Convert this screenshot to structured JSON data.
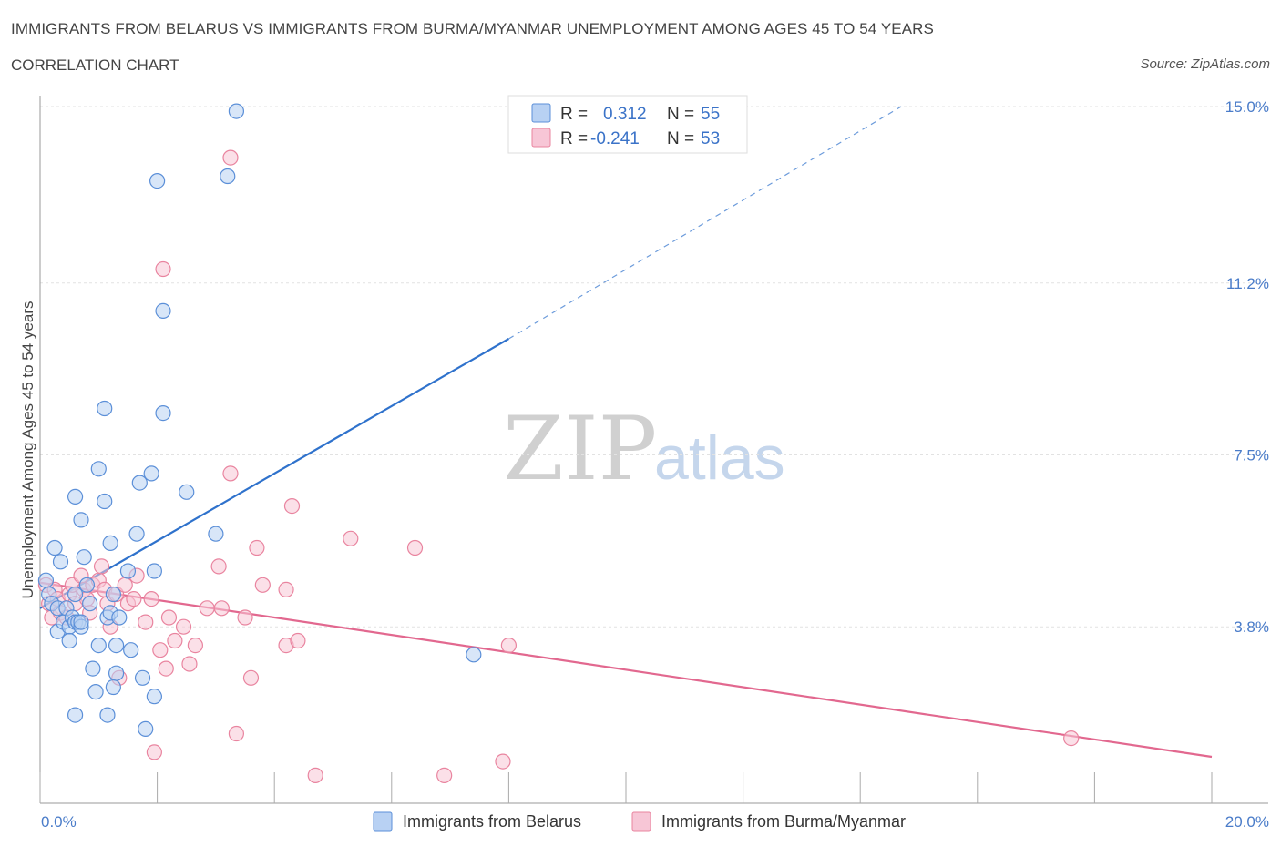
{
  "header": {
    "title": "IMMIGRANTS FROM BELARUS VS IMMIGRANTS FROM BURMA/MYANMAR UNEMPLOYMENT AMONG AGES 45 TO 54 YEARS",
    "subtitle": "CORRELATION CHART",
    "source": "Source: ZipAtlas.com"
  },
  "watermark": {
    "zip": "ZIP",
    "atlas": "atlas"
  },
  "legend": {
    "r_label": "R =",
    "n_label": "N =",
    "entries": [
      {
        "r": "0.312",
        "n": "55"
      },
      {
        "r": "-0.241",
        "n": "53"
      }
    ]
  },
  "colors": {
    "belarus_fill": "#b8d1f3",
    "belarus_stroke": "#5b8fd8",
    "belarus_line": "#2f72cc",
    "burma_fill": "#f7c6d6",
    "burma_stroke": "#e9849f",
    "burma_line": "#e2688f"
  },
  "chart_data": {
    "type": "scatter",
    "title": "IMMIGRANTS FROM BELARUS VS IMMIGRANTS FROM BURMA/MYANMAR UNEMPLOYMENT AMONG AGES 45 TO 54 YEARS",
    "xlabel": "",
    "ylabel": "Unemployment Among Ages 45 to 54 years",
    "xlim": [
      0,
      20
    ],
    "ylim": [
      0,
      15
    ],
    "x_tick_labels": [
      "0.0%",
      "20.0%"
    ],
    "y_ticks": [
      3.8,
      7.5,
      11.2,
      15.0
    ],
    "y_tick_labels": [
      "3.8%",
      "7.5%",
      "11.2%",
      "15.0%"
    ],
    "grid": true,
    "legend_position": "top-center",
    "series": [
      {
        "name": "Immigrants from Belarus",
        "points": [
          [
            0.1,
            4.8
          ],
          [
            0.15,
            4.5
          ],
          [
            0.2,
            4.3
          ],
          [
            0.25,
            5.5
          ],
          [
            0.3,
            4.2
          ],
          [
            0.3,
            3.7
          ],
          [
            0.35,
            5.2
          ],
          [
            0.4,
            3.9
          ],
          [
            0.45,
            4.2
          ],
          [
            0.5,
            3.8
          ],
          [
            0.5,
            3.5
          ],
          [
            0.55,
            4.0
          ],
          [
            0.6,
            4.5
          ],
          [
            0.6,
            3.9
          ],
          [
            0.65,
            3.9
          ],
          [
            0.7,
            3.8
          ],
          [
            0.7,
            3.9
          ],
          [
            0.6,
            6.6
          ],
          [
            0.7,
            6.1
          ],
          [
            0.75,
            5.3
          ],
          [
            0.8,
            4.7
          ],
          [
            0.85,
            4.3
          ],
          [
            0.9,
            2.9
          ],
          [
            0.95,
            2.4
          ],
          [
            0.6,
            1.9
          ],
          [
            1.0,
            7.2
          ],
          [
            1.1,
            6.5
          ],
          [
            1.1,
            8.5
          ],
          [
            1.15,
            4.0
          ],
          [
            1.2,
            5.6
          ],
          [
            1.2,
            4.1
          ],
          [
            1.25,
            4.5
          ],
          [
            1.3,
            3.4
          ],
          [
            1.35,
            4.0
          ],
          [
            1.0,
            3.4
          ],
          [
            1.3,
            2.8
          ],
          [
            1.25,
            2.5
          ],
          [
            1.15,
            1.9
          ],
          [
            1.5,
            5.0
          ],
          [
            1.55,
            3.3
          ],
          [
            1.65,
            5.8
          ],
          [
            1.7,
            6.9
          ],
          [
            1.75,
            2.7
          ],
          [
            1.8,
            1.6
          ],
          [
            1.9,
            7.1
          ],
          [
            1.95,
            5.0
          ],
          [
            1.95,
            2.3
          ],
          [
            2.0,
            13.4
          ],
          [
            2.1,
            10.6
          ],
          [
            2.1,
            8.4
          ],
          [
            2.5,
            6.7
          ],
          [
            3.0,
            5.8
          ],
          [
            3.2,
            13.5
          ],
          [
            3.35,
            14.9
          ],
          [
            7.4,
            3.2
          ]
        ]
      },
      {
        "name": "Immigrants from Burma/Myanmar",
        "points": [
          [
            0.1,
            4.7
          ],
          [
            0.15,
            4.3
          ],
          [
            0.2,
            4.0
          ],
          [
            0.25,
            4.6
          ],
          [
            0.3,
            4.4
          ],
          [
            0.35,
            4.1
          ],
          [
            0.45,
            4.0
          ],
          [
            0.5,
            4.5
          ],
          [
            0.55,
            4.7
          ],
          [
            0.6,
            4.3
          ],
          [
            0.7,
            4.9
          ],
          [
            0.75,
            4.6
          ],
          [
            0.8,
            4.4
          ],
          [
            0.85,
            4.1
          ],
          [
            0.9,
            4.7
          ],
          [
            1.0,
            4.8
          ],
          [
            1.05,
            5.1
          ],
          [
            1.1,
            4.6
          ],
          [
            1.15,
            4.3
          ],
          [
            1.2,
            3.8
          ],
          [
            1.3,
            4.5
          ],
          [
            1.35,
            2.7
          ],
          [
            1.45,
            4.7
          ],
          [
            1.5,
            4.3
          ],
          [
            1.6,
            4.4
          ],
          [
            1.65,
            4.9
          ],
          [
            1.8,
            3.9
          ],
          [
            1.9,
            4.4
          ],
          [
            1.95,
            1.1
          ],
          [
            2.05,
            3.3
          ],
          [
            2.1,
            11.5
          ],
          [
            2.15,
            2.9
          ],
          [
            2.2,
            4.0
          ],
          [
            2.3,
            3.5
          ],
          [
            2.45,
            3.8
          ],
          [
            2.55,
            3.0
          ],
          [
            2.65,
            3.4
          ],
          [
            2.85,
            4.2
          ],
          [
            3.05,
            5.1
          ],
          [
            3.1,
            4.2
          ],
          [
            3.25,
            7.1
          ],
          [
            3.35,
            1.5
          ],
          [
            3.5,
            4.0
          ],
          [
            3.6,
            2.7
          ],
          [
            3.7,
            5.5
          ],
          [
            3.8,
            4.7
          ],
          [
            4.2,
            4.6
          ],
          [
            4.3,
            6.4
          ],
          [
            4.2,
            3.4
          ],
          [
            4.4,
            3.5
          ],
          [
            4.7,
            0.6
          ],
          [
            5.3,
            5.7
          ],
          [
            6.4,
            5.5
          ]
        ]
      }
    ],
    "extra_points": {
      "Immigrants from Burma/Myanmar": [
        [
          3.25,
          13.9
        ],
        [
          6.9,
          0.6
        ],
        [
          7.9,
          0.9
        ],
        [
          8.0,
          3.4
        ],
        [
          17.6,
          1.4
        ]
      ]
    },
    "trend_lines": [
      {
        "name": "Immigrants from Belarus",
        "x": [
          0.0,
          8.0
        ],
        "y": [
          4.2,
          10.0
        ],
        "dashed_extension_to_x": 14.7,
        "dashed_extension_to_y": 15.0
      },
      {
        "name": "Immigrants from Burma/Myanmar",
        "x": [
          0.0,
          20.0
        ],
        "y": [
          4.75,
          1.0
        ]
      }
    ]
  },
  "bottom_legend": {
    "items": [
      "Immigrants from Belarus",
      "Immigrants from Burma/Myanmar"
    ]
  }
}
